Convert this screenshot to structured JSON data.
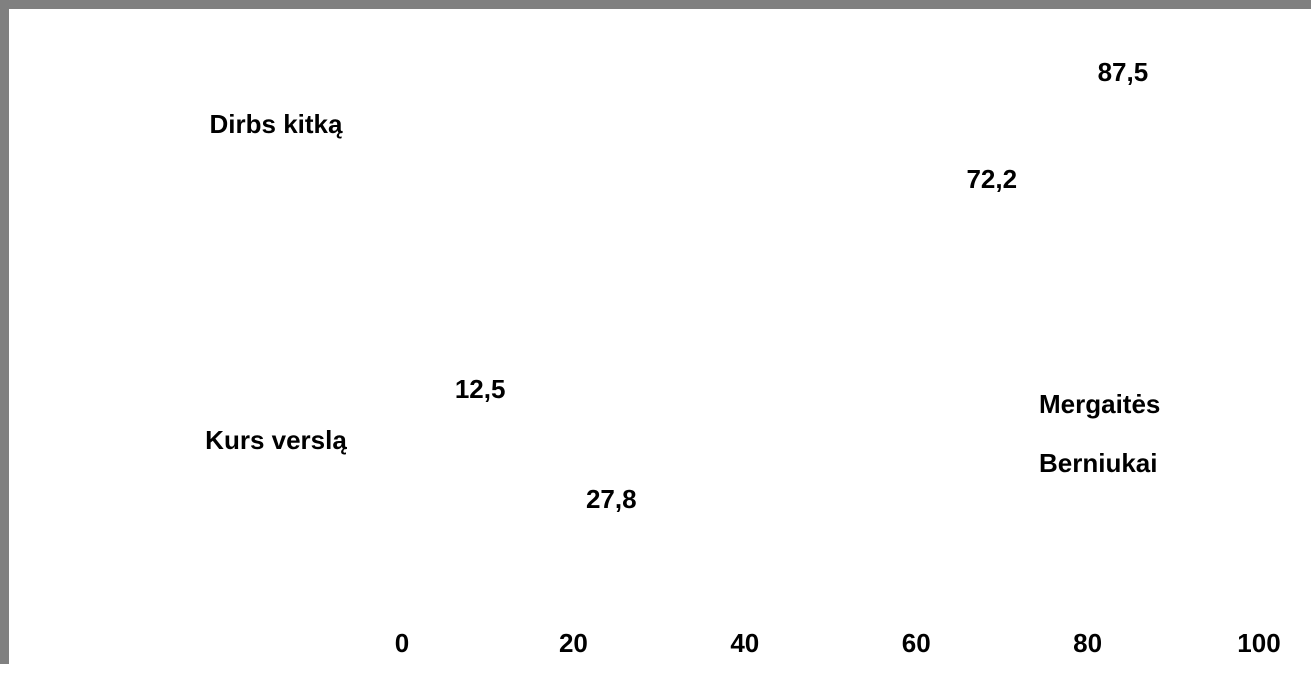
{
  "chart_data": {
    "type": "bar",
    "orientation": "horizontal",
    "categories": [
      "Dirbs kitką",
      "Kurs verslą"
    ],
    "series": [
      {
        "name": "Mergaitės",
        "values": [
          87.5,
          12.5
        ],
        "value_labels": [
          "87,5",
          "12,5"
        ]
      },
      {
        "name": "Berniukai",
        "values": [
          72.2,
          27.8
        ],
        "value_labels": [
          "72,2",
          "27,8"
        ]
      }
    ],
    "xlim": [
      0,
      100
    ],
    "x_ticks": [
      0,
      20,
      40,
      60,
      80,
      100
    ],
    "x_tick_labels": [
      "0",
      "20",
      "40",
      "60",
      "80",
      "100"
    ],
    "grid": false,
    "legend_position": "right"
  }
}
